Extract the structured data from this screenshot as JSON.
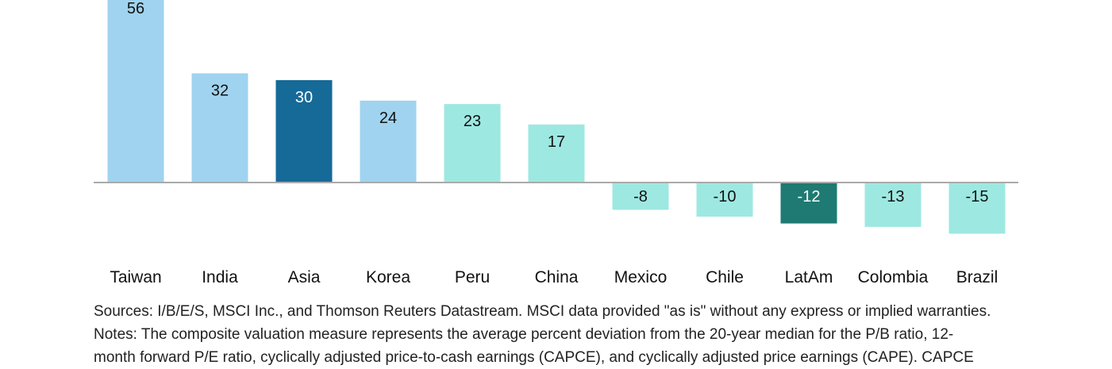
{
  "chart_data": {
    "type": "bar",
    "categories": [
      "Taiwan",
      "India",
      "Asia",
      "Korea",
      "Peru",
      "China",
      "Mexico",
      "Chile",
      "LatAm",
      "Colombia",
      "Brazil"
    ],
    "values": [
      56,
      32,
      30,
      24,
      23,
      17,
      -8,
      -10,
      -12,
      -13,
      -15
    ],
    "data_labels": [
      "56",
      "32",
      "30",
      "24",
      "23",
      "17",
      "-8",
      "-10",
      "-12",
      "-13",
      "-15"
    ],
    "bar_colors": [
      "#a0d3ef",
      "#a0d3ef",
      "#166a98",
      "#a0d3ef",
      "#9ee8e2",
      "#9ee8e2",
      "#9ee8e2",
      "#9ee8e2",
      "#1e7a72",
      "#9ee8e2",
      "#9ee8e2"
    ],
    "label_colors": [
      "#111111",
      "#111111",
      "#ffffff",
      "#111111",
      "#111111",
      "#111111",
      "#111111",
      "#111111",
      "#ffffff",
      "#111111",
      "#111111"
    ],
    "grid": false,
    "legend": "none"
  },
  "notes": {
    "sources": "Sources: I/B/E/S, MSCI Inc., and Thomson Reuters Datastream. MSCI data provided \"as is\" without any express or implied warranties.",
    "notes_line1": "Notes: The composite valuation measure represents the average percent deviation from the 20-year median for the P/B ratio, 12-",
    "notes_line2": "month forward P/E ratio, cyclically adjusted price-to-cash earnings (CAPCE), and cyclically adjusted price earnings (CAPE). CAPCE"
  }
}
